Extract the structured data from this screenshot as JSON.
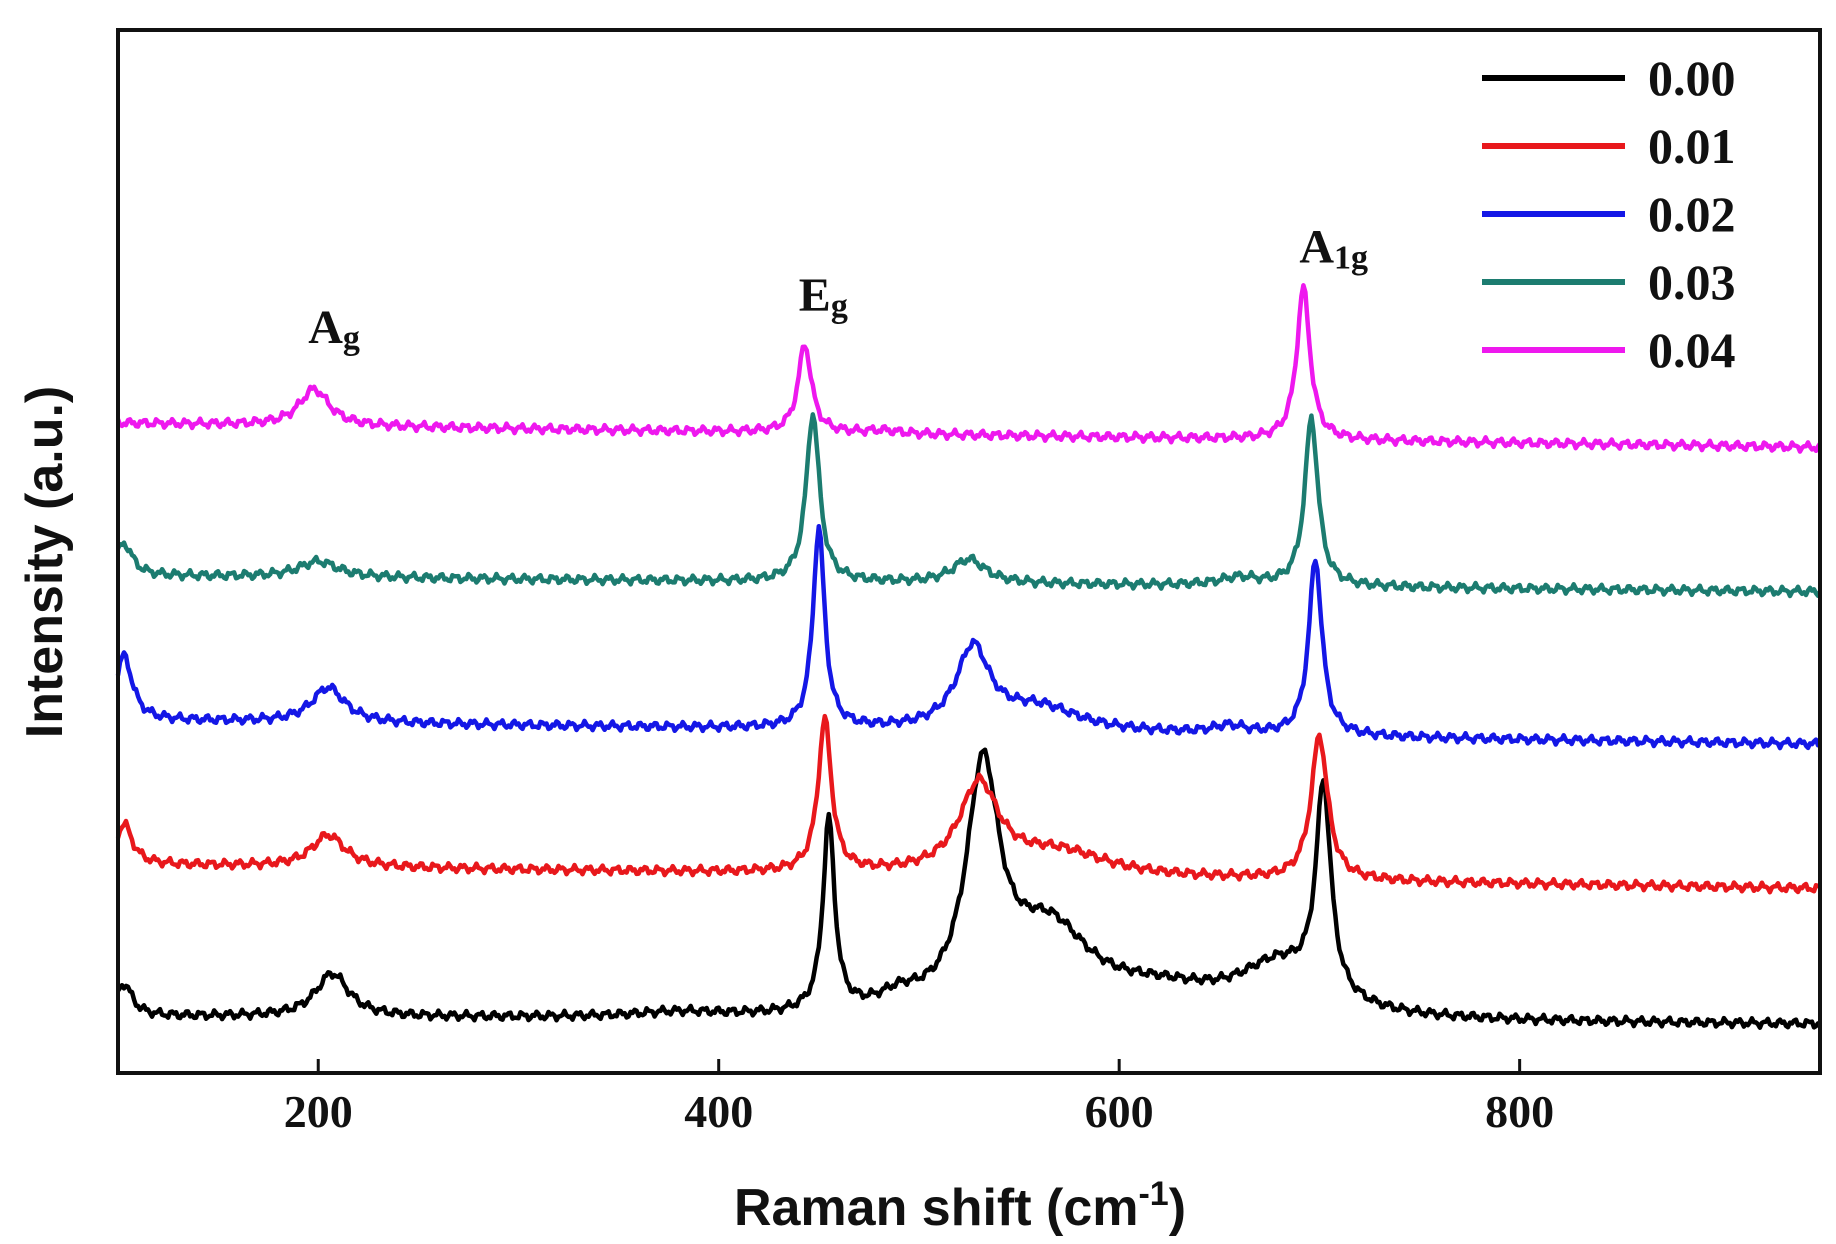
{
  "chart_data": {
    "type": "line",
    "title": "",
    "xlabel": "Raman shift (cm",
    "xlabel_sup": "-1",
    "xlabel_close": ")",
    "ylabel": "Intensity (a.u.)",
    "xlim": [
      100,
      950
    ],
    "ylim": [
      0,
      6.5
    ],
    "xticks": [
      200,
      400,
      600,
      800
    ],
    "xtick_labels": [
      "200",
      "400",
      "600",
      "800"
    ],
    "legend_position": "top-right",
    "grid": false,
    "annotations": [
      {
        "main": "A",
        "sub": "g",
        "x": 195,
        "y": 4.55
      },
      {
        "main": "E",
        "sub": "g",
        "x": 440,
        "y": 4.75
      },
      {
        "main": "A",
        "sub": "1g",
        "x": 690,
        "y": 5.05
      }
    ],
    "series": [
      {
        "name": "0.00",
        "color": "#000000",
        "baseline": 0.35,
        "drift": -0.05,
        "peaks": [
          [
            103,
            0.2,
            5
          ],
          [
            207,
            0.27,
            10
          ],
          [
            380,
            0.03,
            25
          ],
          [
            455,
            1.2,
            3.5
          ],
          [
            490,
            0.08,
            12
          ],
          [
            532,
            1.45,
            10
          ],
          [
            565,
            0.5,
            25
          ],
          [
            620,
            0.14,
            40
          ],
          [
            680,
            0.3,
            25
          ],
          [
            702,
            1.3,
            4.5
          ]
        ]
      },
      {
        "name": "0.01",
        "color": "#e8181c",
        "baseline": 1.3,
        "drift": -0.15,
        "peaks": [
          [
            103,
            0.25,
            5
          ],
          [
            205,
            0.2,
            10
          ],
          [
            453,
            0.95,
            4
          ],
          [
            530,
            0.55,
            12
          ],
          [
            570,
            0.15,
            30
          ],
          [
            700,
            0.9,
            5
          ]
        ]
      },
      {
        "name": "0.02",
        "color": "#1417e6",
        "baseline": 2.2,
        "drift": -0.15,
        "peaks": [
          [
            103,
            0.4,
            5
          ],
          [
            205,
            0.22,
            10
          ],
          [
            450,
            1.25,
            3.5
          ],
          [
            527,
            0.5,
            10
          ],
          [
            560,
            0.15,
            25
          ],
          [
            655,
            0.05,
            10
          ],
          [
            698,
            1.1,
            4
          ]
        ]
      },
      {
        "name": "0.03",
        "color": "#1c7c70",
        "baseline": 3.1,
        "drift": -0.1,
        "peaks": [
          [
            103,
            0.2,
            5
          ],
          [
            200,
            0.1,
            12
          ],
          [
            447,
            1.05,
            4
          ],
          [
            525,
            0.15,
            10
          ],
          [
            660,
            0.05,
            12
          ],
          [
            696,
            1.05,
            4
          ]
        ]
      },
      {
        "name": "0.04",
        "color": "#ee18ee",
        "baseline": 4.05,
        "drift": -0.15,
        "peaks": [
          [
            198,
            0.23,
            9
          ],
          [
            443,
            0.55,
            4
          ],
          [
            482,
            0.02,
            10
          ],
          [
            692,
            0.95,
            4
          ]
        ]
      }
    ]
  }
}
